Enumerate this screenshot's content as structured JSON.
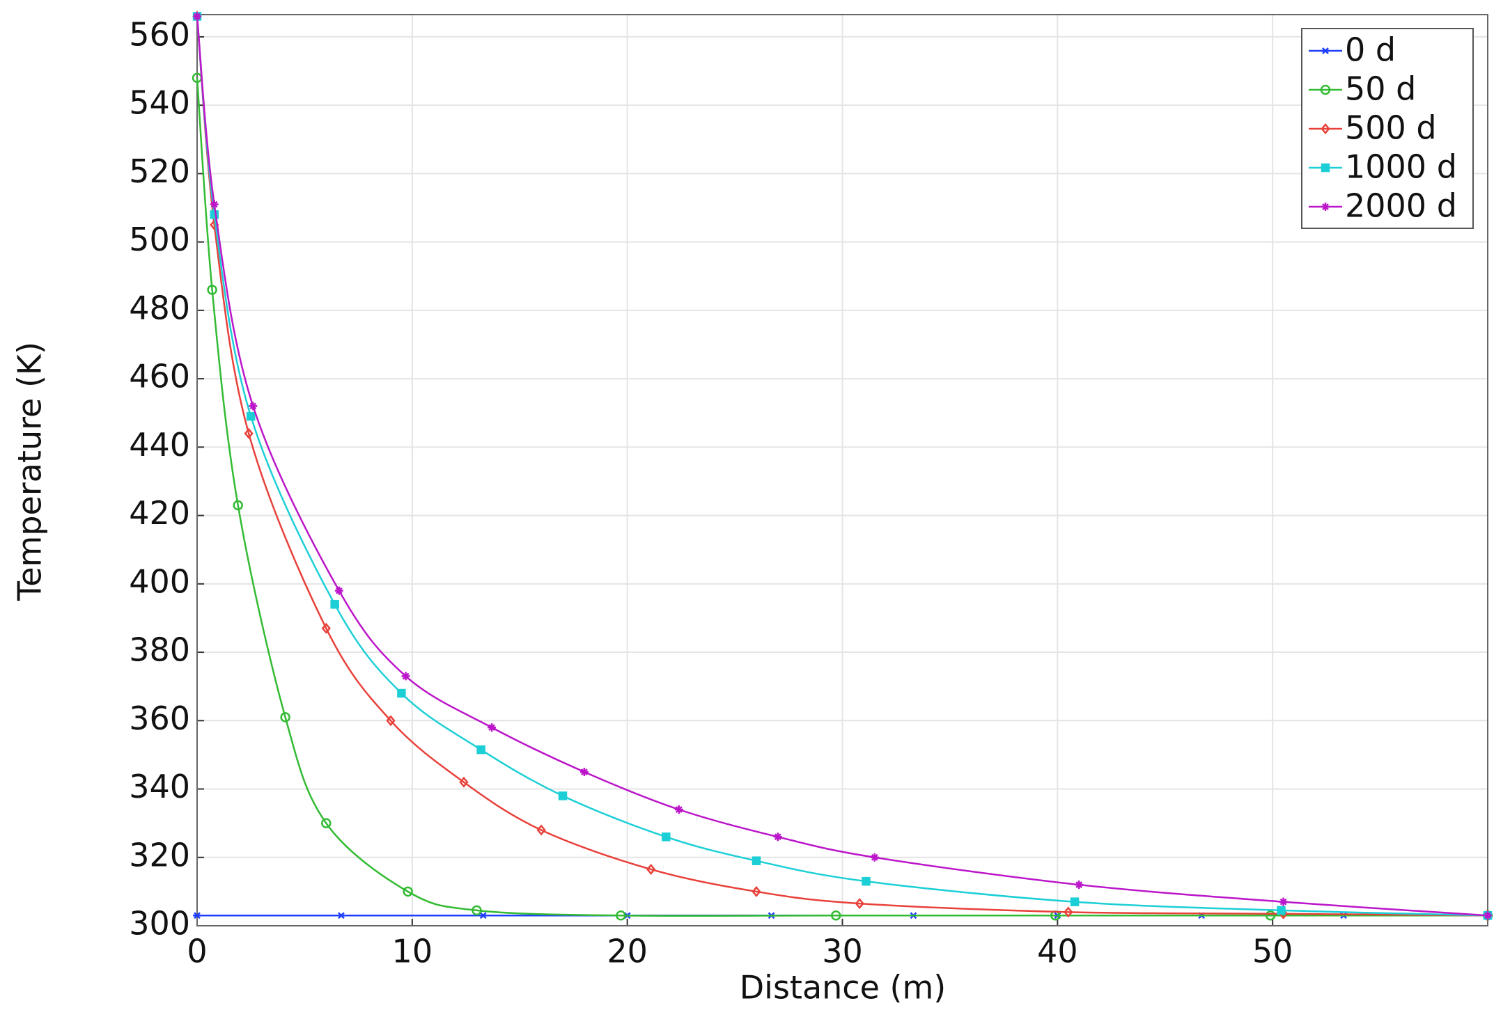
{
  "chart_data": {
    "type": "line",
    "xlabel": "Distance (m)",
    "ylabel": "Temperature (K)",
    "xlim": [
      0,
      60
    ],
    "ylim": [
      300,
      566.5
    ],
    "xticks": [
      0,
      10,
      20,
      30,
      40,
      50
    ],
    "yticks": [
      300,
      320,
      340,
      360,
      380,
      400,
      420,
      440,
      460,
      480,
      500,
      520,
      540,
      560
    ],
    "grid": true,
    "legend": "upper right",
    "series": [
      {
        "name": "0 d",
        "color": "#1f3fff",
        "marker": "asterisk",
        "x": [
          0,
          6.7,
          13.3,
          20,
          26.7,
          33.3,
          40,
          46.7,
          53.3,
          60
        ],
        "values": [
          303,
          303,
          303,
          303,
          303,
          303,
          303,
          303,
          303,
          303
        ]
      },
      {
        "name": "50 d",
        "color": "#33bb33",
        "marker": "circle",
        "x": [
          0,
          0.7,
          1.9,
          4.1,
          6,
          9.8,
          13,
          19.7,
          29.7,
          39.9,
          49.9,
          60
        ],
        "values": [
          548,
          486,
          423,
          361,
          330,
          310,
          304.5,
          303,
          303,
          303,
          303,
          303
        ]
      },
      {
        "name": "500 d",
        "color": "#e8413a",
        "marker": "diamond",
        "x": [
          0,
          0.8,
          2.4,
          6,
          9,
          12.4,
          16,
          21.1,
          26,
          30.8,
          40.5,
          50.5,
          60
        ],
        "values": [
          566,
          505,
          444,
          387,
          360,
          342,
          328,
          316.5,
          310,
          306.5,
          304,
          303.5,
          303
        ]
      },
      {
        "name": "1000 d",
        "color": "#1ccfd6",
        "marker": "square",
        "x": [
          0,
          0.8,
          2.5,
          6.4,
          9.5,
          13.2,
          17,
          21.8,
          26,
          31.1,
          40.8,
          50.4,
          60
        ],
        "values": [
          566,
          508,
          449,
          394,
          368,
          351.5,
          338,
          326,
          319,
          313,
          307,
          304.5,
          303
        ]
      },
      {
        "name": "2000 d",
        "color": "#bb16c9",
        "marker": "plus",
        "x": [
          0,
          0.8,
          2.6,
          6.6,
          9.7,
          13.7,
          18,
          22.4,
          27,
          31.5,
          41,
          50.5,
          60
        ],
        "values": [
          566,
          511,
          452,
          398,
          373,
          358,
          345,
          334,
          326,
          320,
          312,
          307,
          303
        ]
      }
    ]
  }
}
